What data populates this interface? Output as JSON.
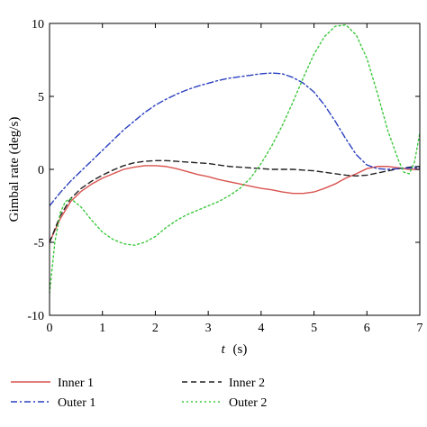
{
  "chart_data": {
    "type": "line",
    "xlabel_italic": "t",
    "xlabel_unit": "(s)",
    "ylabel": "Gimbal rate (deg/s)",
    "xlim": [
      0,
      7
    ],
    "ylim": [
      -10,
      10
    ],
    "x_ticks": [
      0,
      1,
      2,
      3,
      4,
      5,
      6,
      7
    ],
    "y_ticks": [
      -10,
      -5,
      0,
      5,
      10
    ],
    "grid": false,
    "legend_position": "bottom",
    "series": [
      {
        "name": "Inner 1",
        "color": "#d9534f",
        "dash": "solid",
        "points": [
          [
            0,
            -5.0
          ],
          [
            0.2,
            -3.4
          ],
          [
            0.4,
            -2.2
          ],
          [
            0.6,
            -1.5
          ],
          [
            0.8,
            -1.0
          ],
          [
            1.0,
            -0.6
          ],
          [
            1.2,
            -0.3
          ],
          [
            1.4,
            0.0
          ],
          [
            1.6,
            0.15
          ],
          [
            1.8,
            0.25
          ],
          [
            2.0,
            0.25
          ],
          [
            2.2,
            0.2
          ],
          [
            2.4,
            0.05
          ],
          [
            2.6,
            -0.15
          ],
          [
            2.8,
            -0.35
          ],
          [
            3.0,
            -0.5
          ],
          [
            3.2,
            -0.7
          ],
          [
            3.4,
            -0.85
          ],
          [
            3.6,
            -1.0
          ],
          [
            3.8,
            -1.15
          ],
          [
            4.0,
            -1.3
          ],
          [
            4.2,
            -1.4
          ],
          [
            4.4,
            -1.55
          ],
          [
            4.6,
            -1.65
          ],
          [
            4.8,
            -1.65
          ],
          [
            5.0,
            -1.55
          ],
          [
            5.2,
            -1.3
          ],
          [
            5.4,
            -1.0
          ],
          [
            5.6,
            -0.6
          ],
          [
            5.8,
            -0.3
          ],
          [
            6.0,
            0.05
          ],
          [
            6.2,
            0.2
          ],
          [
            6.4,
            0.2
          ],
          [
            6.6,
            0.1
          ],
          [
            6.8,
            0.0
          ],
          [
            7.0,
            0.0
          ]
        ]
      },
      {
        "name": "Inner 2",
        "color": "#222222",
        "dash": "dashed",
        "points": [
          [
            0,
            -5.0
          ],
          [
            0.2,
            -3.2
          ],
          [
            0.4,
            -2.0
          ],
          [
            0.6,
            -1.3
          ],
          [
            0.8,
            -0.8
          ],
          [
            1.0,
            -0.4
          ],
          [
            1.2,
            -0.05
          ],
          [
            1.4,
            0.25
          ],
          [
            1.6,
            0.45
          ],
          [
            1.8,
            0.55
          ],
          [
            2.0,
            0.6
          ],
          [
            2.2,
            0.6
          ],
          [
            2.4,
            0.55
          ],
          [
            2.6,
            0.5
          ],
          [
            2.8,
            0.45
          ],
          [
            3.0,
            0.4
          ],
          [
            3.2,
            0.3
          ],
          [
            3.4,
            0.2
          ],
          [
            3.6,
            0.15
          ],
          [
            3.8,
            0.1
          ],
          [
            4.0,
            0.05
          ],
          [
            4.2,
            0.0
          ],
          [
            4.4,
            0.0
          ],
          [
            4.6,
            0.0
          ],
          [
            4.8,
            -0.05
          ],
          [
            5.0,
            -0.1
          ],
          [
            5.2,
            -0.2
          ],
          [
            5.4,
            -0.3
          ],
          [
            5.6,
            -0.4
          ],
          [
            5.8,
            -0.45
          ],
          [
            6.0,
            -0.4
          ],
          [
            6.2,
            -0.25
          ],
          [
            6.4,
            -0.1
          ],
          [
            6.6,
            0.05
          ],
          [
            6.8,
            0.15
          ],
          [
            7.0,
            0.2
          ]
        ]
      },
      {
        "name": "Outer 1",
        "color": "#2a3fbf",
        "dash": "dashdot",
        "points": [
          [
            0,
            -2.5
          ],
          [
            0.2,
            -1.6
          ],
          [
            0.4,
            -0.8
          ],
          [
            0.6,
            -0.1
          ],
          [
            0.8,
            0.6
          ],
          [
            1.0,
            1.3
          ],
          [
            1.2,
            2.0
          ],
          [
            1.4,
            2.7
          ],
          [
            1.6,
            3.3
          ],
          [
            1.8,
            3.9
          ],
          [
            2.0,
            4.4
          ],
          [
            2.2,
            4.8
          ],
          [
            2.4,
            5.15
          ],
          [
            2.6,
            5.45
          ],
          [
            2.8,
            5.7
          ],
          [
            3.0,
            5.9
          ],
          [
            3.2,
            6.1
          ],
          [
            3.4,
            6.25
          ],
          [
            3.6,
            6.35
          ],
          [
            3.8,
            6.45
          ],
          [
            4.0,
            6.55
          ],
          [
            4.2,
            6.6
          ],
          [
            4.4,
            6.55
          ],
          [
            4.6,
            6.3
          ],
          [
            4.8,
            5.9
          ],
          [
            5.0,
            5.3
          ],
          [
            5.2,
            4.4
          ],
          [
            5.4,
            3.3
          ],
          [
            5.6,
            2.1
          ],
          [
            5.8,
            1.0
          ],
          [
            6.0,
            0.3
          ],
          [
            6.2,
            0.05
          ],
          [
            6.4,
            0.0
          ],
          [
            6.6,
            0.05
          ],
          [
            6.8,
            0.1
          ],
          [
            7.0,
            0.1
          ]
        ]
      },
      {
        "name": "Outer 2",
        "color": "#3cc83c",
        "dash": "dotted",
        "points": [
          [
            0,
            -8.5
          ],
          [
            0.1,
            -5.0
          ],
          [
            0.2,
            -3.0
          ],
          [
            0.3,
            -2.2
          ],
          [
            0.4,
            -2.0
          ],
          [
            0.6,
            -2.6
          ],
          [
            0.8,
            -3.5
          ],
          [
            1.0,
            -4.3
          ],
          [
            1.2,
            -4.8
          ],
          [
            1.4,
            -5.1
          ],
          [
            1.6,
            -5.2
          ],
          [
            1.8,
            -5.0
          ],
          [
            2.0,
            -4.6
          ],
          [
            2.2,
            -4.0
          ],
          [
            2.4,
            -3.5
          ],
          [
            2.6,
            -3.1
          ],
          [
            2.8,
            -2.8
          ],
          [
            3.0,
            -2.5
          ],
          [
            3.2,
            -2.2
          ],
          [
            3.4,
            -1.8
          ],
          [
            3.6,
            -1.3
          ],
          [
            3.8,
            -0.6
          ],
          [
            4.0,
            0.4
          ],
          [
            4.2,
            1.6
          ],
          [
            4.4,
            3.0
          ],
          [
            4.6,
            4.6
          ],
          [
            4.8,
            6.3
          ],
          [
            5.0,
            7.9
          ],
          [
            5.2,
            9.1
          ],
          [
            5.4,
            9.8
          ],
          [
            5.6,
            9.9
          ],
          [
            5.8,
            9.2
          ],
          [
            6.0,
            7.6
          ],
          [
            6.2,
            5.2
          ],
          [
            6.4,
            2.6
          ],
          [
            6.6,
            0.6
          ],
          [
            6.7,
            -0.2
          ],
          [
            6.8,
            -0.3
          ],
          [
            6.9,
            0.5
          ],
          [
            7.0,
            2.5
          ]
        ]
      }
    ]
  }
}
